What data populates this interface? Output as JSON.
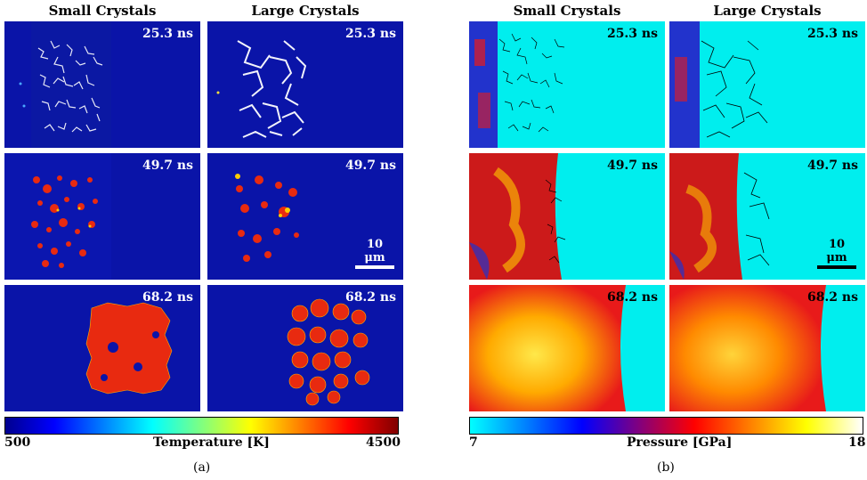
{
  "figure_a": {
    "columns": [
      "Small Crystals",
      "Large Crystals"
    ],
    "times": [
      "25.3 ns",
      "49.7 ns",
      "68.2 ns"
    ],
    "scale_bar": "10 μm",
    "colorbar": {
      "min": "500",
      "max": "4500",
      "label": "Temperature [K]"
    },
    "sublabel": "(a)",
    "colors": {
      "background": "#0a14a8",
      "hot": "#e82a10",
      "cold": "#000096"
    }
  },
  "figure_b": {
    "columns": [
      "Small Crystals",
      "Large Crystals"
    ],
    "times": [
      "25.3 ns",
      "49.7 ns",
      "68.2 ns"
    ],
    "scale_bar": "10 μm",
    "colorbar": {
      "min": "7",
      "max": "18",
      "label": "Pressure [GPa]"
    },
    "sublabel": "(b)",
    "colors": {
      "background": "#00eeee",
      "high": "#ffcc00",
      "mid": "#e81a1a"
    }
  }
}
